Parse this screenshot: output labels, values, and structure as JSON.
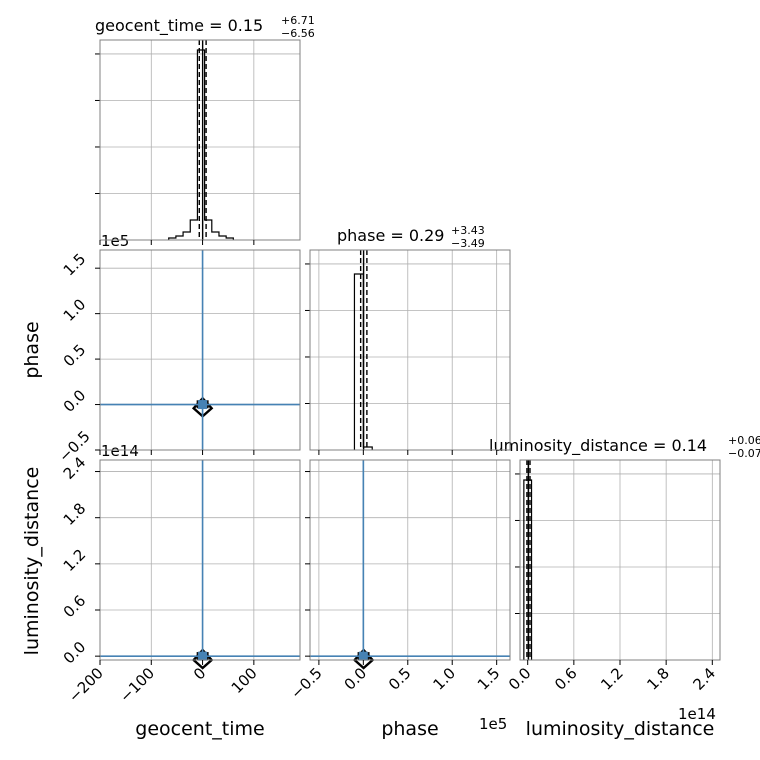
{
  "chart_data": {
    "type": "corner",
    "parameters": [
      "geocent_time",
      "phase",
      "luminosity_distance"
    ],
    "panels": [
      {
        "kind": "histogram",
        "parameter": "geocent_time",
        "title": {
          "main": "geocent_time = 0.15",
          "plus": "+6.71",
          "minus": "−6.56"
        },
        "xlim": [
          -200,
          190
        ],
        "bins": [
          {
            "x0": -66,
            "x1": -52,
            "h": 0.01
          },
          {
            "x0": -52,
            "x1": -38,
            "h": 0.02
          },
          {
            "x0": -38,
            "x1": -24,
            "h": 0.04
          },
          {
            "x0": -24,
            "x1": -10,
            "h": 0.1
          },
          {
            "x0": -10,
            "x1": 4,
            "h": 0.95
          },
          {
            "x0": 4,
            "x1": 18,
            "h": 0.1
          },
          {
            "x0": 18,
            "x1": 32,
            "h": 0.04
          },
          {
            "x0": 32,
            "x1": 46,
            "h": 0.02
          },
          {
            "x0": 46,
            "x1": 60,
            "h": 0.01
          }
        ],
        "quantiles": [
          -6.4,
          0.15,
          6.9
        ]
      },
      {
        "kind": "histogram",
        "parameter": "phase",
        "title": {
          "main": "phase = 0.29",
          "plus": "+3.43",
          "minus": "−3.49"
        },
        "xlim": [
          -0.6,
          1.65
        ],
        "bins": [
          {
            "x0": -0.1,
            "x1": 0.0,
            "h": 0.88
          },
          {
            "x0": 0.0,
            "x1": 0.1,
            "h": 0.015
          }
        ],
        "quantiles": [
          -0.03,
          0.003,
          0.04
        ]
      },
      {
        "kind": "histogram",
        "parameter": "luminosity_distance",
        "title": {
          "main": "luminosity_distance = 0.14",
          "plus": "+0.06",
          "minus": "−0.07"
        },
        "xlim": [
          -0.1,
          2.5
        ],
        "bins": [
          {
            "x0": -0.05,
            "x1": 0.05,
            "h": 0.9
          }
        ],
        "quantiles": [
          -0.01,
          0.01,
          0.03
        ]
      },
      {
        "kind": "scatter",
        "x": "geocent_time",
        "y": "phase",
        "xlim": [
          -200,
          190
        ],
        "ylim": [
          -0.5,
          1.7
        ],
        "point": [
          0.15,
          0.0029
        ],
        "truth": [
          0,
          0
        ]
      },
      {
        "kind": "scatter",
        "x": "geocent_time",
        "y": "luminosity_distance",
        "xlim": [
          -200,
          190
        ],
        "ylim": [
          -0.05,
          2.55
        ],
        "point": [
          0.15,
          0.0014
        ],
        "truth": [
          0,
          0
        ]
      },
      {
        "kind": "scatter",
        "x": "phase",
        "y": "luminosity_distance",
        "xlim": [
          -0.6,
          1.65
        ],
        "ylim": [
          -0.05,
          2.55
        ],
        "point": [
          0.0029,
          0.0014
        ],
        "truth": [
          0,
          0
        ]
      }
    ],
    "ticks": {
      "geocent_time": [
        "−200",
        "−100",
        "0",
        "100"
      ],
      "geocent_time_values": [
        -200,
        -100,
        0,
        100
      ],
      "phase_x": [
        "−0.5",
        "0.0",
        "0.5",
        "1.0",
        "1.5"
      ],
      "phase_x_values": [
        -0.5,
        0.0,
        0.5,
        1.0,
        1.5
      ],
      "phase_y": [
        "−0.5",
        "0.0",
        "0.5",
        "1.0",
        "1.5"
      ],
      "phase_y_values": [
        -0.5,
        0.0,
        0.5,
        1.0,
        1.5
      ],
      "luminosity_distance": [
        "0.0",
        "0.6",
        "1.2",
        "1.8",
        "2.4"
      ],
      "luminosity_distance_values": [
        0.0,
        0.6,
        1.2,
        1.8,
        2.4
      ]
    },
    "offsets": {
      "phase_y": "1e5",
      "luminosity_distance_y": "1e14",
      "phase_x": "1e5",
      "luminosity_distance_x": "1e14"
    },
    "axis_labels": {
      "x1": "geocent_time",
      "x2": "phase",
      "x3": "luminosity_distance",
      "y2": "phase",
      "y3": "luminosity_distance"
    },
    "colors": {
      "histogram": "#000000",
      "truth": "#4682b4",
      "contour": "#000000",
      "grid": "#b0b0b0",
      "frame": "#808080"
    }
  }
}
